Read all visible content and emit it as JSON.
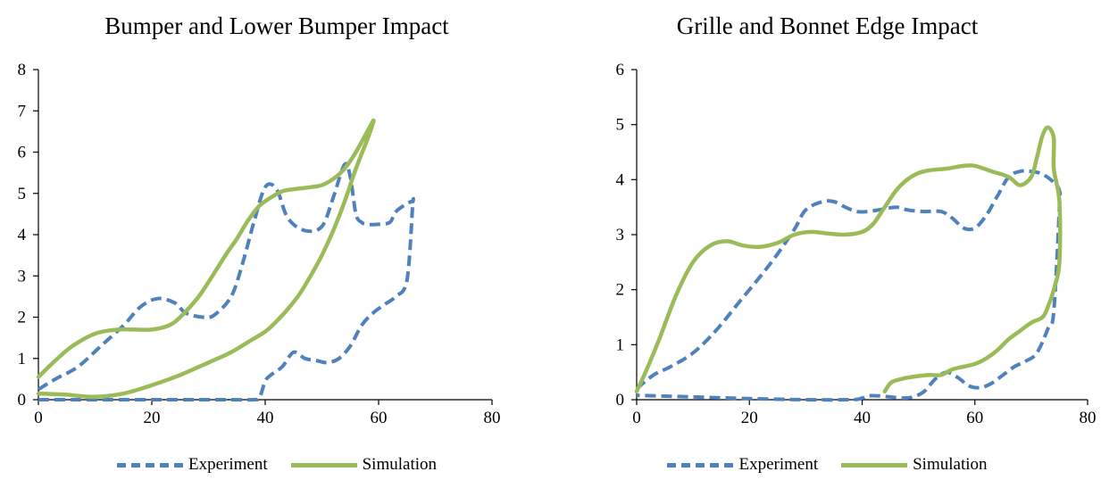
{
  "colors": {
    "experiment": "#4f81bd",
    "simulation": "#9bbb59",
    "axis": "#000000"
  },
  "chart_data": [
    {
      "type": "line",
      "title": "Bumper and Lower Bumper Impact",
      "xlabel": "",
      "ylabel": "",
      "xlim": [
        0,
        80
      ],
      "ylim": [
        0,
        8
      ],
      "xticks": [
        0,
        20,
        40,
        60,
        80
      ],
      "yticks": [
        0,
        1,
        2,
        3,
        4,
        5,
        6,
        7,
        8
      ],
      "grid": false,
      "legend_position": "bottom",
      "series": [
        {
          "name": "Experiment",
          "style": "dashed",
          "x": [
            0,
            3,
            7,
            11,
            15,
            18,
            21,
            24,
            26,
            29,
            31,
            34,
            36,
            38,
            40,
            42,
            44,
            47,
            50,
            52,
            54,
            55,
            56,
            57,
            58,
            60,
            62,
            63,
            65,
            66,
            66,
            65,
            63,
            61,
            59,
            57,
            55,
            53,
            51,
            49,
            47,
            45,
            43,
            41,
            40,
            39,
            38,
            34,
            20,
            5,
            0
          ],
          "y": [
            0.25,
            0.5,
            0.8,
            1.3,
            1.8,
            2.25,
            2.45,
            2.35,
            2.1,
            2.0,
            2.05,
            2.5,
            3.3,
            4.3,
            5.15,
            5.1,
            4.4,
            4.1,
            4.2,
            4.9,
            5.7,
            5.4,
            4.5,
            4.3,
            4.25,
            4.25,
            4.3,
            4.55,
            4.75,
            4.8,
            4.7,
            2.9,
            2.5,
            2.3,
            2.1,
            1.8,
            1.3,
            1.0,
            0.9,
            0.95,
            1.0,
            1.15,
            0.8,
            0.6,
            0.45,
            0.05,
            0.0,
            0.0,
            0.0,
            0.0,
            0.0
          ]
        },
        {
          "name": "Simulation",
          "style": "solid",
          "x": [
            0,
            3,
            6,
            10,
            14,
            17,
            20,
            23,
            25,
            28,
            30,
            33,
            35,
            37,
            39,
            41,
            43,
            45,
            48,
            50,
            52,
            54,
            56,
            58,
            59,
            59,
            58,
            56,
            54,
            52,
            50,
            48,
            46,
            44,
            42,
            40,
            37,
            34,
            30,
            25,
            20,
            15,
            10,
            5,
            0
          ],
          "y": [
            0.55,
            0.95,
            1.3,
            1.6,
            1.7,
            1.7,
            1.7,
            1.8,
            2.0,
            2.45,
            2.85,
            3.5,
            3.9,
            4.35,
            4.7,
            4.9,
            5.05,
            5.1,
            5.15,
            5.2,
            5.35,
            5.6,
            6.0,
            6.5,
            6.75,
            6.7,
            6.3,
            5.6,
            4.8,
            4.1,
            3.5,
            3.0,
            2.55,
            2.2,
            1.9,
            1.65,
            1.4,
            1.15,
            0.9,
            0.6,
            0.35,
            0.15,
            0.07,
            0.12,
            0.15
          ]
        }
      ]
    },
    {
      "type": "line",
      "title": "Grille and Bonnet Edge Impact",
      "xlabel": "",
      "ylabel": "",
      "xlim": [
        0,
        80
      ],
      "ylim": [
        0,
        6
      ],
      "xticks": [
        0,
        20,
        40,
        60,
        80
      ],
      "yticks": [
        0,
        1,
        2,
        3,
        4,
        5,
        6
      ],
      "grid": false,
      "legend_position": "bottom",
      "series": [
        {
          "name": "Experiment",
          "style": "dashed",
          "x": [
            0,
            3,
            6,
            10,
            14,
            18,
            22,
            25,
            28,
            30,
            33,
            35,
            37,
            39,
            41,
            43,
            46,
            48,
            51,
            54,
            56,
            58,
            60,
            62,
            64,
            66,
            68,
            70,
            72,
            74,
            75,
            75,
            74,
            73,
            71,
            69,
            67,
            65,
            63,
            61,
            59,
            57,
            55,
            53,
            51,
            49,
            47,
            45,
            43,
            41,
            40,
            38,
            30,
            20,
            10,
            0
          ],
          "y": [
            0.2,
            0.45,
            0.6,
            0.85,
            1.25,
            1.75,
            2.25,
            2.65,
            3.1,
            3.45,
            3.6,
            3.6,
            3.5,
            3.42,
            3.42,
            3.45,
            3.5,
            3.45,
            3.42,
            3.42,
            3.3,
            3.12,
            3.12,
            3.35,
            3.7,
            4.05,
            4.15,
            4.15,
            4.1,
            3.95,
            3.8,
            3.5,
            1.6,
            1.3,
            0.85,
            0.7,
            0.6,
            0.45,
            0.3,
            0.22,
            0.25,
            0.4,
            0.5,
            0.38,
            0.15,
            0.05,
            0.03,
            0.05,
            0.07,
            0.07,
            0.03,
            0.0,
            0.0,
            0.02,
            0.05,
            0.08
          ]
        },
        {
          "name": "Simulation",
          "style": "solid",
          "x": [
            0,
            2,
            4,
            7,
            10,
            13,
            16,
            19,
            22,
            25,
            28,
            31,
            34,
            37,
            40,
            42,
            44,
            46,
            48,
            50,
            52,
            55,
            58,
            60,
            63,
            66,
            68,
            70,
            71,
            72,
            73,
            74,
            74,
            75,
            75,
            74,
            73,
            72,
            70,
            68,
            66,
            64,
            62,
            60,
            58,
            56,
            54,
            52,
            50,
            48,
            46,
            45,
            44
          ],
          "y": [
            0.15,
            0.6,
            1.1,
            1.9,
            2.5,
            2.8,
            2.88,
            2.8,
            2.78,
            2.85,
            3.0,
            3.05,
            3.02,
            3.0,
            3.05,
            3.2,
            3.5,
            3.8,
            4.0,
            4.12,
            4.17,
            4.2,
            4.25,
            4.25,
            4.15,
            4.05,
            3.9,
            4.05,
            4.4,
            4.8,
            4.95,
            4.75,
            4.2,
            3.6,
            2.5,
            2.0,
            1.7,
            1.5,
            1.4,
            1.25,
            1.1,
            0.9,
            0.75,
            0.65,
            0.6,
            0.55,
            0.45,
            0.45,
            0.43,
            0.4,
            0.35,
            0.3,
            0.15
          ]
        }
      ]
    }
  ]
}
